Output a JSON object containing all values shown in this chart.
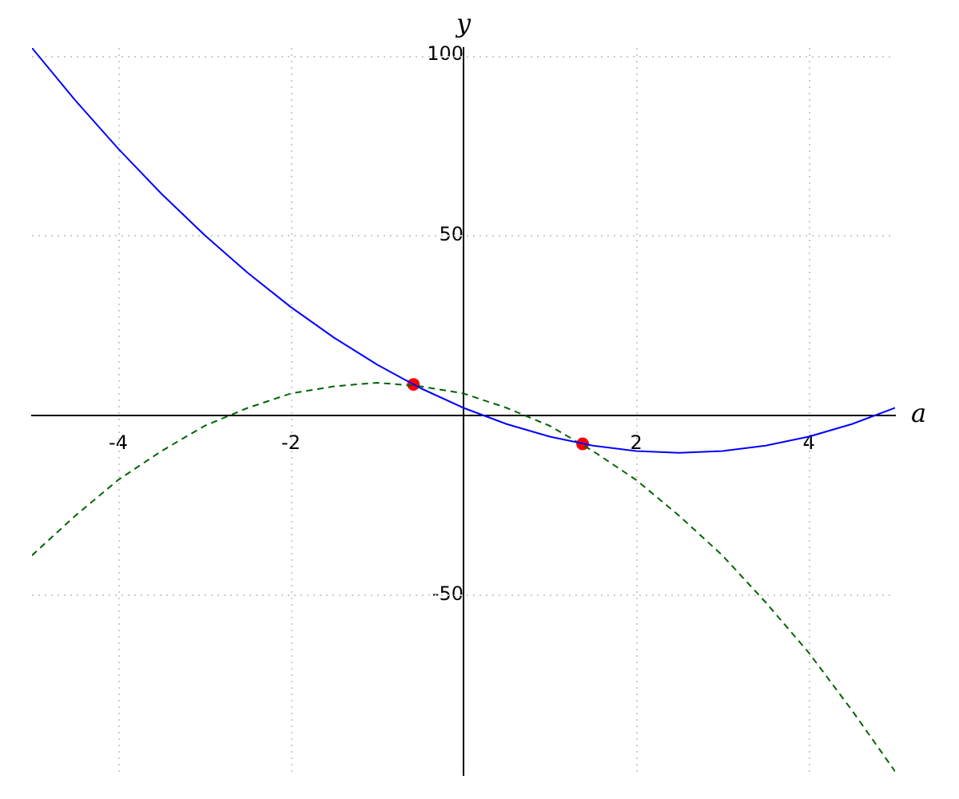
{
  "chart_data": {
    "type": "line",
    "xlabel": "a",
    "ylabel": "y",
    "x": [
      -5,
      -4.5,
      -4,
      -3.5,
      -3,
      -2.5,
      -2,
      -1.5,
      -1,
      -0.5,
      0,
      0.5,
      1,
      1.5,
      2,
      2.5,
      3,
      3.5,
      4,
      4.5,
      5
    ],
    "series": [
      {
        "color": "#0000ff",
        "line_style": "solid",
        "values": [
          102,
          87.5,
          74,
          61.5,
          50,
          39.5,
          30,
          21.5,
          14,
          7.5,
          2,
          -2.5,
          -6,
          -8.5,
          -10,
          -10.5,
          -10,
          -8.5,
          -6,
          -2.5,
          2
        ]
      },
      {
        "color": "#006400",
        "line_style": "dashed",
        "values": [
          -39,
          -28,
          -18,
          -10,
          -3,
          2,
          6,
          8,
          9,
          8,
          6,
          2,
          -3,
          -10,
          -18,
          -28,
          -39,
          -52,
          -66,
          -82,
          -99
        ]
      },
      {
        "type": "scatter",
        "color": "#ff0000",
        "marker": "circle",
        "x": [
          -0.58,
          1.38
        ],
        "values": [
          8.5,
          -8
        ]
      }
    ],
    "xlim": [
      -5,
      5
    ],
    "ylim": [
      -100,
      102
    ],
    "xticks": [
      -4,
      -2,
      2,
      4
    ],
    "yticks": [
      -50,
      50,
      100
    ],
    "grid": true,
    "legend": false,
    "marker": "none"
  }
}
